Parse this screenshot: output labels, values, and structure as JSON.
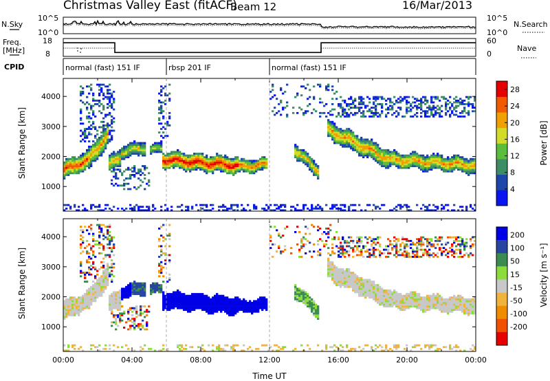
{
  "header": {
    "station": "Christmas Valley East (fitACF)",
    "beam": "Beam 12",
    "date": "16/Mar/2013"
  },
  "status_panel": {
    "nsky_label": "N.Sky",
    "nsearch_label": "N.Search",
    "noise_ticks_left": [
      "10^5",
      "10^0"
    ],
    "noise_ticks_right": [
      "10^5",
      "10^0"
    ],
    "freq_label_1": "Freq.",
    "freq_label_2": "[MHz]",
    "freq_ticks": [
      "18",
      "8"
    ],
    "nave_label": "Nave",
    "nave_ticks": [
      "60",
      "0"
    ],
    "cpid_label": "CPID",
    "cpid_segments": [
      {
        "label": "normal (fast) 151 IF",
        "start": 0,
        "end": 6
      },
      {
        "label": "rbsp 201 IF",
        "start": 6,
        "end": 12
      },
      {
        "label": "normal (fast) 151 IF",
        "start": 12,
        "end": 24
      }
    ],
    "freq_trace_mhz": [
      [
        0,
        15.6
      ],
      [
        3,
        15.6
      ],
      [
        3,
        10.2
      ],
      [
        15,
        10.2
      ],
      [
        15,
        15.6
      ],
      [
        24,
        15.6
      ]
    ]
  },
  "chart_data": [
    {
      "type": "heatmap",
      "name": "power",
      "ylabel": "Slant Range [km]",
      "xlabel": "",
      "xlim": [
        0,
        24
      ],
      "ylim": [
        180,
        4600
      ],
      "yticks": [
        "1000",
        "2000",
        "3000",
        "4000"
      ],
      "colorbar_label": "Power [dB]",
      "colorbar_ticks": [
        "4",
        "8",
        "12",
        "16",
        "20",
        "24",
        "28"
      ],
      "colorbar_range": [
        0,
        30
      ],
      "colors": [
        "#0a16f0",
        "#1e46aa",
        "#3c8c64",
        "#5abe3c",
        "#d2dc28",
        "#f0a000",
        "#f05a00",
        "#e60000"
      ],
      "echo_bands": [
        {
          "t0": 0.0,
          "t1": 1.5,
          "r_start": 1550,
          "r_end": 1900,
          "width": 650,
          "core": 26
        },
        {
          "t0": 1.5,
          "t1": 2.6,
          "r_start": 1900,
          "r_end": 2750,
          "width": 750,
          "core": 22
        },
        {
          "t0": 2.6,
          "t1": 3.4,
          "r_start": 1700,
          "r_end": 2000,
          "width": 600,
          "core": 20
        },
        {
          "t0": 3.4,
          "t1": 4.8,
          "r_start": 2150,
          "r_end": 2300,
          "width": 450,
          "core": 18
        },
        {
          "t0": 5.0,
          "t1": 5.8,
          "r_start": 2200,
          "r_end": 2300,
          "width": 350,
          "core": 16
        },
        {
          "t0": 5.8,
          "t1": 10.2,
          "r_start": 1900,
          "r_end": 1700,
          "width": 600,
          "core": 29
        },
        {
          "t0": 10.2,
          "t1": 11.9,
          "r_start": 1650,
          "r_end": 1750,
          "width": 450,
          "core": 24
        },
        {
          "t0": 13.5,
          "t1": 14.9,
          "r_start": 2200,
          "r_end": 1500,
          "width": 500,
          "core": 20
        },
        {
          "t0": 15.4,
          "t1": 19.0,
          "r_start": 2900,
          "r_end": 1900,
          "width": 650,
          "core": 22
        },
        {
          "t0": 19.0,
          "t1": 24.0,
          "r_start": 1900,
          "r_end": 1700,
          "width": 550,
          "core": 22
        }
      ],
      "scatter_bands": [
        {
          "t0": 1.0,
          "t1": 3.0,
          "r0": 2500,
          "r1": 4400,
          "density": 0.35
        },
        {
          "t0": 5.5,
          "t1": 6.2,
          "r0": 2400,
          "r1": 4400,
          "density": 0.25
        },
        {
          "t0": 12.0,
          "t1": 16.0,
          "r0": 3300,
          "r1": 4400,
          "density": 0.15
        },
        {
          "t0": 16.0,
          "t1": 24.0,
          "r0": 3300,
          "r1": 4000,
          "density": 0.45
        },
        {
          "t0": 2.8,
          "t1": 5.0,
          "r0": 900,
          "r1": 1700,
          "density": 0.35
        }
      ],
      "ground_scatter": {
        "r0": 200,
        "r1": 430
      }
    },
    {
      "type": "heatmap",
      "name": "velocity",
      "ylabel": "Slant Range [km]",
      "xlabel": "Time UT",
      "xlim": [
        0,
        24
      ],
      "ylim": [
        180,
        4600
      ],
      "xticks": [
        "00:00",
        "04:00",
        "08:00",
        "12:00",
        "16:00",
        "20:00",
        "00:00"
      ],
      "yticks": [
        "1000",
        "2000",
        "3000",
        "4000"
      ],
      "colorbar_label": "Velocity [m s⁻¹]",
      "colorbar_ticks": [
        "200",
        "100",
        "50",
        "15",
        "-15",
        "-50",
        "-100",
        "-200"
      ],
      "colors": [
        "#0000e6",
        "#2846a0",
        "#3c8c50",
        "#8cdc3c",
        "#c8c8c8",
        "#f0b43c",
        "#f08c00",
        "#f05000",
        "#e60000"
      ],
      "regions": [
        {
          "t0": 0.0,
          "t1": 1.5,
          "v": 0,
          "note": "ground scatter"
        },
        {
          "t0": 1.5,
          "t1": 3.4,
          "v": 0
        },
        {
          "t0": 3.4,
          "t1": 4.0,
          "v": 250
        },
        {
          "t0": 4.0,
          "t1": 5.8,
          "v": 80
        },
        {
          "t0": 5.8,
          "t1": 11.9,
          "v": 220
        },
        {
          "t0": 13.5,
          "t1": 14.9,
          "v": 30
        },
        {
          "t0": 15.4,
          "t1": 24.0,
          "v": 0
        }
      ]
    }
  ]
}
